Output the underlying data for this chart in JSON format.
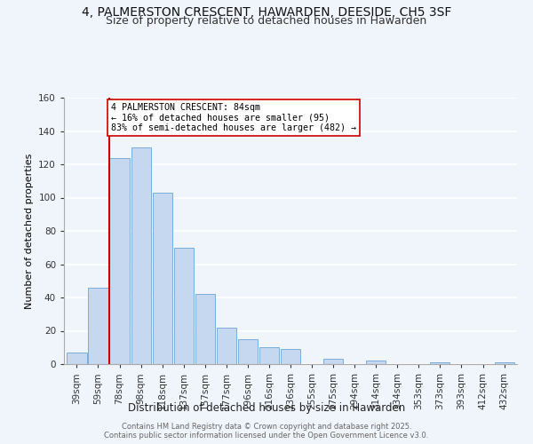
{
  "title": "4, PALMERSTON CRESCENT, HAWARDEN, DEESIDE, CH5 3SF",
  "subtitle": "Size of property relative to detached houses in Hawarden",
  "xlabel": "Distribution of detached houses by size in Hawarden",
  "ylabel": "Number of detached properties",
  "bar_labels": [
    "39sqm",
    "59sqm",
    "78sqm",
    "98sqm",
    "118sqm",
    "137sqm",
    "157sqm",
    "177sqm",
    "196sqm",
    "216sqm",
    "236sqm",
    "255sqm",
    "275sqm",
    "294sqm",
    "314sqm",
    "334sqm",
    "353sqm",
    "373sqm",
    "393sqm",
    "412sqm",
    "432sqm"
  ],
  "bar_values": [
    7,
    46,
    124,
    130,
    103,
    70,
    42,
    22,
    15,
    10,
    9,
    0,
    3,
    0,
    2,
    0,
    0,
    1,
    0,
    0,
    1
  ],
  "bar_color": "#c5d8ef",
  "bar_edge_color": "#7aaddb",
  "vline_x": 1.5,
  "vline_color": "#cc0000",
  "ylim": [
    0,
    160
  ],
  "yticks": [
    0,
    20,
    40,
    60,
    80,
    100,
    120,
    140,
    160
  ],
  "annotation_title": "4 PALMERSTON CRESCENT: 84sqm",
  "annotation_line1": "← 16% of detached houses are smaller (95)",
  "annotation_line2": "83% of semi-detached houses are larger (482) →",
  "annotation_box_color": "#ffffff",
  "annotation_box_edge": "#cc0000",
  "footer_line1": "Contains HM Land Registry data © Crown copyright and database right 2025.",
  "footer_line2": "Contains public sector information licensed under the Open Government Licence v3.0.",
  "background_color": "#f0f4fb",
  "grid_color": "#ffffff",
  "title_fontsize": 10,
  "subtitle_fontsize": 9
}
